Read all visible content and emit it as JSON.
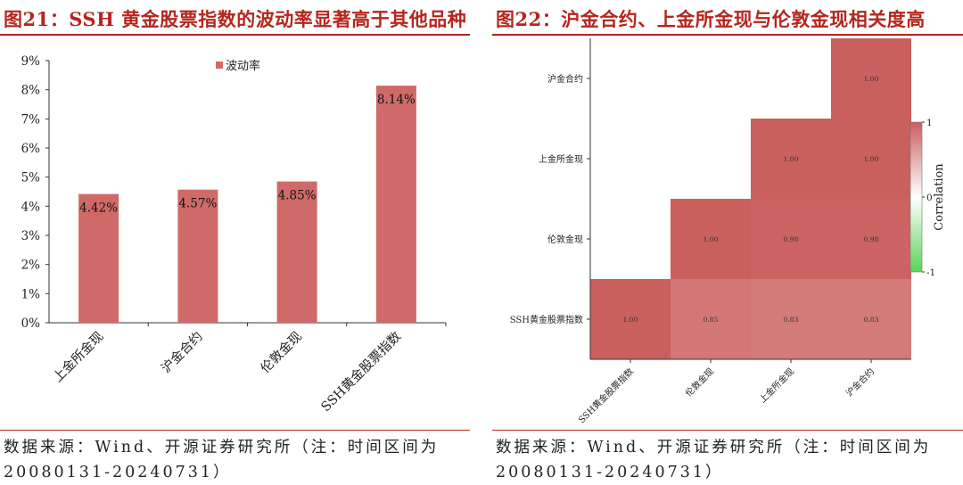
{
  "figures": [
    {
      "title": "图21：SSH 黄金股票指数的波动率显著高于其他品种",
      "source": "数据来源：Wind、开源证券研究所（注：时间区间为20080131-20240731）"
    },
    {
      "title": "图22：沪金合约、上金所金现与伦敦金现相关度高",
      "source": "数据来源：Wind、开源证券研究所（注：时间区间为20080131-20240731）"
    }
  ],
  "chart_data": [
    {
      "type": "bar",
      "categories": [
        "上金所金现",
        "沪金合约",
        "伦敦金现",
        "SSH黄金股票指数"
      ],
      "series": [
        {
          "name": "波动率",
          "values": [
            4.42,
            4.57,
            4.85,
            8.14
          ]
        }
      ],
      "data_labels": [
        "4.42%",
        "4.57%",
        "4.85%",
        "8.14%"
      ],
      "ylim": [
        0,
        9
      ],
      "yticks": [
        "0%",
        "1%",
        "2%",
        "3%",
        "4%",
        "5%",
        "6%",
        "7%",
        "8%",
        "9%"
      ],
      "legend": "top-center",
      "grid": false,
      "colors": {
        "bar": "#d06a68"
      }
    },
    {
      "type": "heatmap",
      "rows": [
        "沪金合约",
        "上金所金现",
        "伦敦金现",
        "SSH黄金股票指数"
      ],
      "columns": [
        "SSH黄金股票指数",
        "伦敦金现",
        "上金所金现",
        "沪金合约"
      ],
      "cells": [
        {
          "row": "沪金合约",
          "col": "沪金合约",
          "value": 1.0,
          "label": "1.00"
        },
        {
          "row": "上金所金现",
          "col": "上金所金现",
          "value": 1.0,
          "label": "1.00"
        },
        {
          "row": "上金所金现",
          "col": "沪金合约",
          "value": 1.0,
          "label": "1.00"
        },
        {
          "row": "伦敦金现",
          "col": "伦敦金现",
          "value": 1.0,
          "label": "1.00"
        },
        {
          "row": "伦敦金现",
          "col": "上金所金现",
          "value": 0.98,
          "label": "0.98"
        },
        {
          "row": "伦敦金现",
          "col": "沪金合约",
          "value": 0.98,
          "label": "0.98"
        },
        {
          "row": "SSH黄金股票指数",
          "col": "SSH黄金股票指数",
          "value": 1.0,
          "label": "1.00"
        },
        {
          "row": "SSH黄金股票指数",
          "col": "伦敦金现",
          "value": 0.85,
          "label": "0.85"
        },
        {
          "row": "SSH黄金股票指数",
          "col": "上金所金现",
          "value": 0.83,
          "label": "0.83"
        },
        {
          "row": "SSH黄金股票指数",
          "col": "沪金合约",
          "value": 0.83,
          "label": "0.83"
        }
      ],
      "colorbar": {
        "label": "Correlation",
        "range": [
          -1,
          1
        ],
        "ticks": [
          "1",
          "0",
          "-1"
        ],
        "colors": {
          "high": "#c9605e",
          "mid": "#ffffff",
          "low": "#5cd35a"
        }
      }
    }
  ]
}
